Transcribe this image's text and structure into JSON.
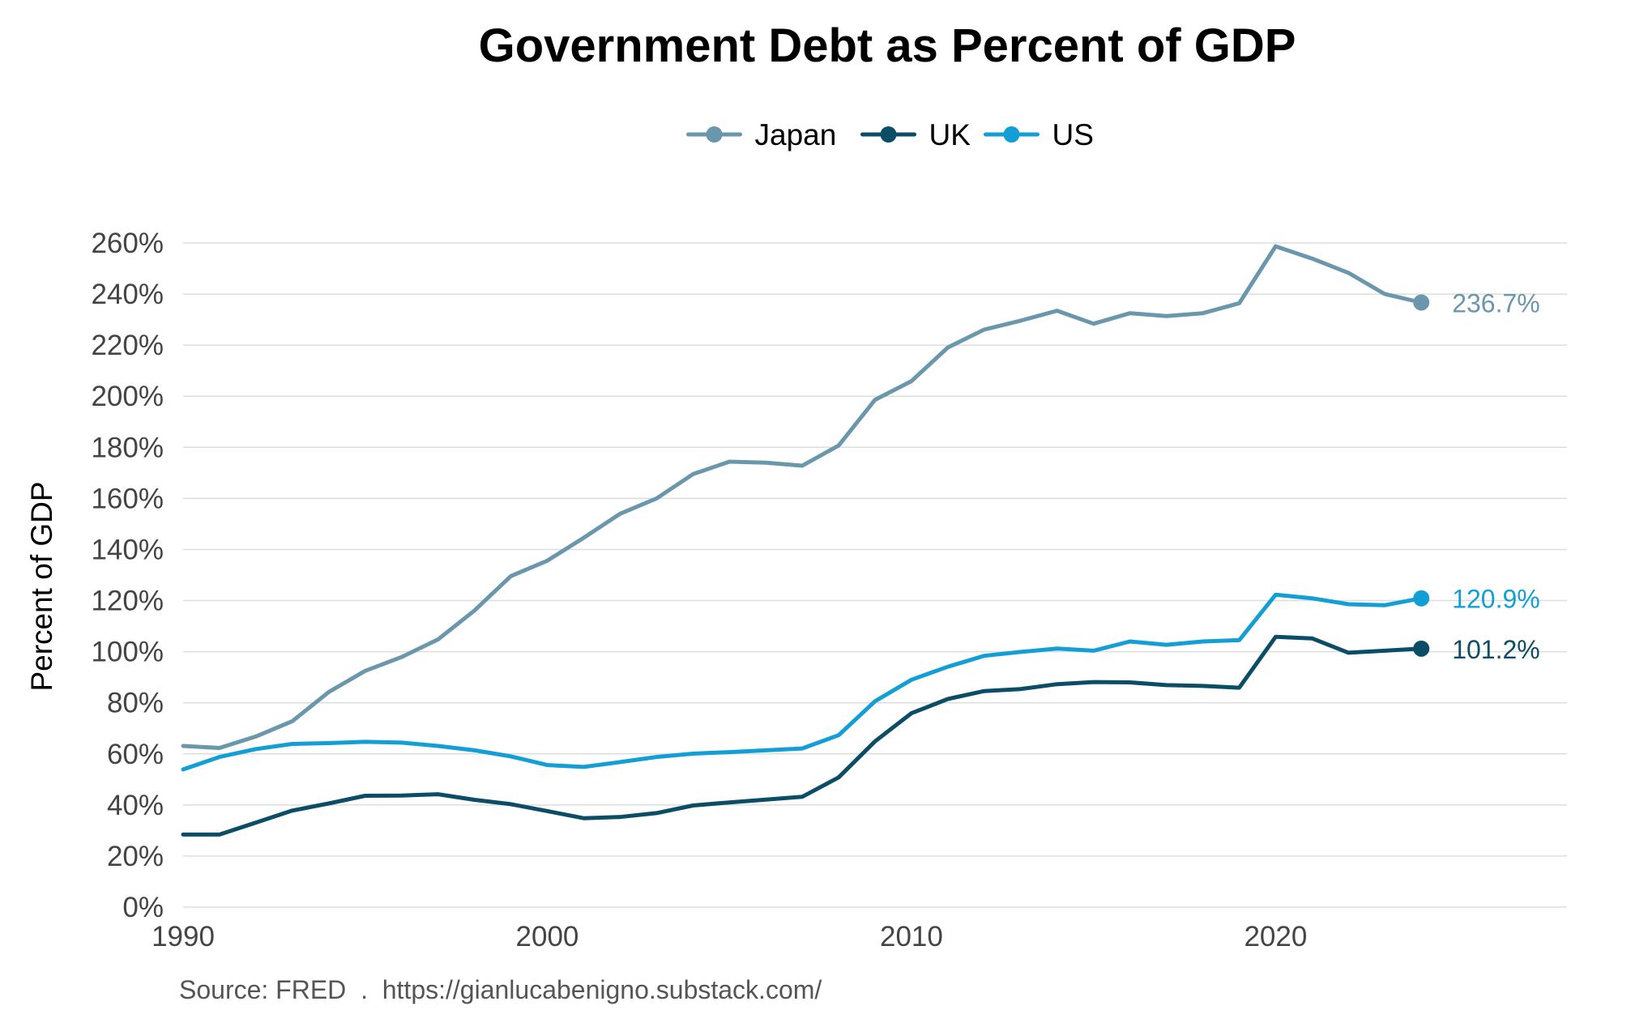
{
  "chart_data": {
    "type": "line",
    "title": "Government Debt as Percent of GDP",
    "xlabel": "",
    "ylabel": "Percent of GDP",
    "caption": "Source: FRED  .  https://gianlucabenigno.substack.com/",
    "xlim": [
      1990,
      2028
    ],
    "ylim": [
      0,
      260
    ],
    "x_ticks": [
      1990,
      2000,
      2010,
      2020
    ],
    "x_tick_labels": [
      "1990",
      "2000",
      "2010",
      "2020"
    ],
    "y_ticks": [
      0,
      20,
      40,
      60,
      80,
      100,
      120,
      140,
      160,
      180,
      200,
      220,
      240,
      260
    ],
    "y_tick_labels": [
      "0%",
      "20%",
      "40%",
      "60%",
      "80%",
      "100%",
      "120%",
      "140%",
      "160%",
      "180%",
      "200%",
      "220%",
      "240%",
      "260%"
    ],
    "grid": true,
    "legend_position": "top-center",
    "x": [
      1990,
      1991,
      1992,
      1993,
      1994,
      1995,
      1996,
      1997,
      1998,
      1999,
      2000,
      2001,
      2002,
      2003,
      2004,
      2005,
      2006,
      2007,
      2008,
      2009,
      2010,
      2011,
      2012,
      2013,
      2014,
      2015,
      2016,
      2017,
      2018,
      2019,
      2020,
      2021,
      2022,
      2023,
      2024
    ],
    "series": [
      {
        "name": "Japan",
        "color": "#6a97ab",
        "values": [
          63.1,
          62.3,
          66.8,
          72.8,
          84.2,
          92.5,
          97.9,
          104.8,
          116.1,
          129.6,
          135.6,
          144.6,
          154.0,
          160.0,
          169.5,
          174.4,
          174.0,
          172.8,
          180.7,
          198.6,
          205.9,
          219.1,
          226.1,
          229.6,
          233.5,
          228.4,
          232.5,
          231.4,
          232.5,
          236.4,
          258.7,
          253.9,
          248.3,
          240.0,
          236.7
        ],
        "end_label": "236.7%"
      },
      {
        "name": "UK",
        "color": "#0b4d66",
        "values": [
          28.4,
          28.4,
          33.1,
          37.8,
          40.6,
          43.6,
          43.7,
          44.2,
          42.0,
          40.3,
          37.6,
          34.8,
          35.3,
          36.8,
          39.8,
          41.0,
          42.1,
          43.2,
          50.8,
          64.9,
          75.9,
          81.5,
          84.6,
          85.4,
          87.3,
          88.1,
          88.0,
          86.9,
          86.6,
          85.9,
          105.8,
          105.2,
          99.6,
          100.4,
          101.2
        ],
        "end_label": "101.2%"
      },
      {
        "name": "US",
        "color": "#139fd6",
        "values": [
          53.9,
          58.8,
          61.9,
          63.9,
          64.2,
          64.7,
          64.4,
          63.1,
          61.4,
          59.0,
          55.6,
          54.9,
          56.8,
          58.8,
          60.1,
          60.7,
          61.4,
          62.1,
          67.3,
          80.6,
          89.0,
          94.1,
          98.4,
          99.9,
          101.2,
          100.4,
          104.0,
          102.7,
          104.0,
          104.5,
          122.3,
          120.9,
          118.6,
          118.2,
          120.9
        ],
        "end_label": "120.9%"
      }
    ]
  }
}
